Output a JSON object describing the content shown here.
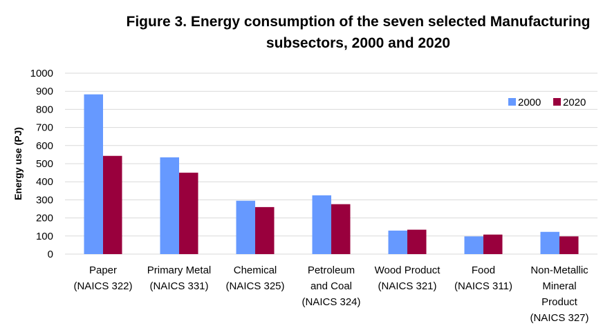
{
  "chart_data": {
    "type": "bar",
    "title_lines": [
      "Figure 3. Energy consumption of the seven selected Manufacturing",
      "subsectors, 2000 and 2020"
    ],
    "ylabel": "Energy use  (PJ)",
    "xlabel": "",
    "ylim": [
      0,
      1000
    ],
    "yticks": [
      "0",
      "100",
      "200",
      "300",
      "400",
      "500",
      "600",
      "700",
      "800",
      "900",
      "1000"
    ],
    "grid": true,
    "legend_position": "top-right",
    "categories": [
      [
        "Paper",
        "(NAICS 322)"
      ],
      [
        "Primary Metal",
        "(NAICS 331)"
      ],
      [
        "Chemical",
        "(NAICS 325)"
      ],
      [
        "Petroleum",
        "and Coal",
        "(NAICS 324)"
      ],
      [
        "Wood Product",
        "(NAICS 321)"
      ],
      [
        "Food",
        "(NAICS 311)"
      ],
      [
        "Non-Metallic",
        "Mineral",
        "Product",
        "(NAICS 327)"
      ]
    ],
    "series": [
      {
        "name": "2000",
        "color": "#6699FF",
        "values": [
          883,
          535,
          295,
          325,
          130,
          98,
          123
        ]
      },
      {
        "name": "2020",
        "color": "#99003D",
        "values": [
          543,
          450,
          260,
          276,
          135,
          108,
          98
        ]
      }
    ]
  }
}
